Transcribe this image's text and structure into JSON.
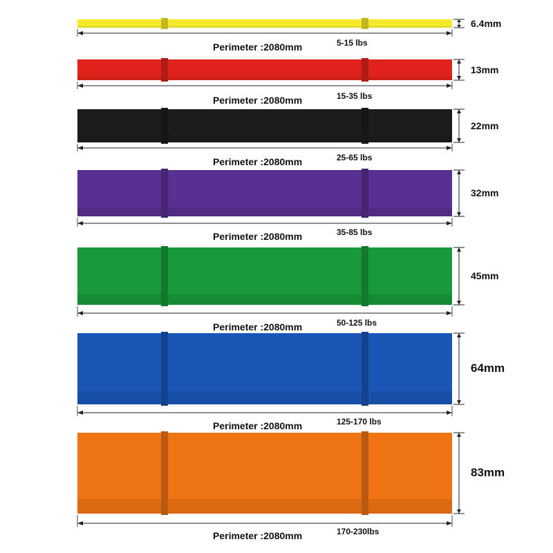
{
  "bands": [
    {
      "color": "#f6ea2a",
      "thickness": "6.4mm",
      "perimeter": "Perimeter :2080mm",
      "resistance": "5-15 lbs"
    },
    {
      "color": "#e0231c",
      "thickness": "13mm",
      "perimeter": "Perimeter :2080mm",
      "resistance": "15-35 lbs"
    },
    {
      "color": "#1c1c1c",
      "thickness": "22mm",
      "perimeter": "Perimeter :2080mm",
      "resistance": "25-65 lbs"
    },
    {
      "color": "#5a2f92",
      "thickness": "32mm",
      "perimeter": "Perimeter :2080mm",
      "resistance": "35-85 lbs"
    },
    {
      "color": "#18993a",
      "thickness": "45mm",
      "perimeter": "Perimeter :2080mm",
      "resistance": "50-125 lbs"
    },
    {
      "color": "#1a56b6",
      "thickness": "64mm",
      "perimeter": "Perimeter :2080mm",
      "resistance": "125-170 lbs"
    },
    {
      "color": "#ef7414",
      "thickness": "83mm",
      "perimeter": "Perimeter :2080mm",
      "resistance": "170-230lbs"
    }
  ]
}
